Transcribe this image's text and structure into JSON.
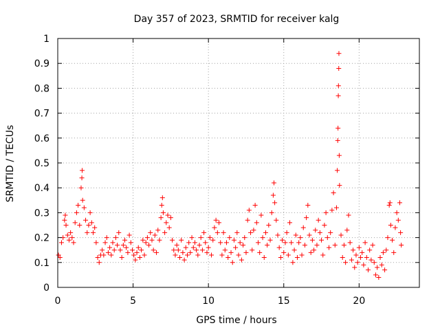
{
  "chart_data": {
    "type": "scatter",
    "title": "Day 357 of 2023, SRMTID for receiver kalg",
    "xlabel": "GPS time / hours",
    "ylabel": "SRMTID / TECUs",
    "xlim": [
      0,
      24
    ],
    "ylim": [
      0,
      1
    ],
    "xticks": [
      0,
      5,
      10,
      15,
      20
    ],
    "yticks": [
      0,
      0.1,
      0.2,
      0.3,
      0.4,
      0.5,
      0.6,
      0.7,
      0.8,
      0.9,
      1
    ],
    "xtick_labels": [
      "0",
      "5",
      "10",
      "15",
      "20"
    ],
    "ytick_labels": [
      "0",
      "0.1",
      "0.2",
      "0.3",
      "0.4",
      "0.5",
      "0.6",
      "0.7",
      "0.8",
      "0.9",
      "1"
    ],
    "grid": true,
    "marker": "+",
    "color": "#ff0000",
    "series": [
      {
        "name": "SRMTID",
        "points": [
          [
            0.05,
            0.13
          ],
          [
            0.15,
            0.12
          ],
          [
            0.25,
            0.18
          ],
          [
            0.35,
            0.2
          ],
          [
            0.45,
            0.27
          ],
          [
            0.5,
            0.29
          ],
          [
            0.55,
            0.25
          ],
          [
            0.65,
            0.21
          ],
          [
            0.75,
            0.19
          ],
          [
            0.85,
            0.22
          ],
          [
            0.95,
            0.2
          ],
          [
            1.05,
            0.18
          ],
          [
            1.15,
            0.26
          ],
          [
            1.25,
            0.3
          ],
          [
            1.35,
            0.33
          ],
          [
            1.45,
            0.25
          ],
          [
            1.55,
            0.4
          ],
          [
            1.6,
            0.44
          ],
          [
            1.62,
            0.47
          ],
          [
            1.65,
            0.35
          ],
          [
            1.75,
            0.32
          ],
          [
            1.85,
            0.27
          ],
          [
            1.95,
            0.22
          ],
          [
            2.05,
            0.25
          ],
          [
            2.15,
            0.3
          ],
          [
            2.25,
            0.26
          ],
          [
            2.35,
            0.22
          ],
          [
            2.45,
            0.24
          ],
          [
            2.55,
            0.18
          ],
          [
            2.65,
            0.12
          ],
          [
            2.75,
            0.1
          ],
          [
            2.85,
            0.13
          ],
          [
            2.95,
            0.15
          ],
          [
            3.05,
            0.13
          ],
          [
            3.15,
            0.18
          ],
          [
            3.25,
            0.2
          ],
          [
            3.35,
            0.14
          ],
          [
            3.45,
            0.16
          ],
          [
            3.55,
            0.13
          ],
          [
            3.65,
            0.18
          ],
          [
            3.75,
            0.15
          ],
          [
            3.85,
            0.2
          ],
          [
            3.95,
            0.17
          ],
          [
            4.05,
            0.22
          ],
          [
            4.15,
            0.15
          ],
          [
            4.25,
            0.12
          ],
          [
            4.35,
            0.17
          ],
          [
            4.45,
            0.19
          ],
          [
            4.55,
            0.16
          ],
          [
            4.65,
            0.14
          ],
          [
            4.75,
            0.21
          ],
          [
            4.85,
            0.18
          ],
          [
            4.95,
            0.15
          ],
          [
            5.05,
            0.13
          ],
          [
            5.15,
            0.11
          ],
          [
            5.25,
            0.14
          ],
          [
            5.35,
            0.16
          ],
          [
            5.45,
            0.12
          ],
          [
            5.55,
            0.15
          ],
          [
            5.65,
            0.19
          ],
          [
            5.75,
            0.13
          ],
          [
            5.85,
            0.18
          ],
          [
            5.95,
            0.2
          ],
          [
            6.05,
            0.17
          ],
          [
            6.15,
            0.22
          ],
          [
            6.25,
            0.19
          ],
          [
            6.35,
            0.15
          ],
          [
            6.45,
            0.21
          ],
          [
            6.55,
            0.14
          ],
          [
            6.65,
            0.23
          ],
          [
            6.75,
            0.19
          ],
          [
            6.85,
            0.28
          ],
          [
            6.9,
            0.33
          ],
          [
            6.95,
            0.36
          ],
          [
            7.0,
            0.3
          ],
          [
            7.1,
            0.22
          ],
          [
            7.2,
            0.26
          ],
          [
            7.3,
            0.29
          ],
          [
            7.4,
            0.24
          ],
          [
            7.5,
            0.28
          ],
          [
            7.6,
            0.19
          ],
          [
            7.7,
            0.15
          ],
          [
            7.8,
            0.13
          ],
          [
            7.9,
            0.17
          ],
          [
            8.0,
            0.15
          ],
          [
            8.1,
            0.12
          ],
          [
            8.2,
            0.19
          ],
          [
            8.3,
            0.14
          ],
          [
            8.4,
            0.11
          ],
          [
            8.5,
            0.16
          ],
          [
            8.6,
            0.13
          ],
          [
            8.7,
            0.18
          ],
          [
            8.8,
            0.14
          ],
          [
            8.9,
            0.2
          ],
          [
            9.0,
            0.16
          ],
          [
            9.1,
            0.18
          ],
          [
            9.2,
            0.15
          ],
          [
            9.3,
            0.13
          ],
          [
            9.4,
            0.17
          ],
          [
            9.5,
            0.2
          ],
          [
            9.6,
            0.15
          ],
          [
            9.7,
            0.22
          ],
          [
            9.8,
            0.18
          ],
          [
            9.9,
            0.14
          ],
          [
            10.0,
            0.16
          ],
          [
            10.1,
            0.2
          ],
          [
            10.2,
            0.13
          ],
          [
            10.3,
            0.19
          ],
          [
            10.4,
            0.24
          ],
          [
            10.5,
            0.27
          ],
          [
            10.6,
            0.22
          ],
          [
            10.7,
            0.26
          ],
          [
            10.8,
            0.18
          ],
          [
            10.9,
            0.13
          ],
          [
            11.0,
            0.22
          ],
          [
            11.1,
            0.15
          ],
          [
            11.2,
            0.18
          ],
          [
            11.3,
            0.12
          ],
          [
            11.4,
            0.2
          ],
          [
            11.5,
            0.14
          ],
          [
            11.6,
            0.1
          ],
          [
            11.7,
            0.19
          ],
          [
            11.8,
            0.16
          ],
          [
            11.9,
            0.22
          ],
          [
            12.0,
            0.13
          ],
          [
            12.1,
            0.18
          ],
          [
            12.2,
            0.11
          ],
          [
            12.3,
            0.17
          ],
          [
            12.4,
            0.2
          ],
          [
            12.5,
            0.14
          ],
          [
            12.6,
            0.27
          ],
          [
            12.7,
            0.31
          ],
          [
            12.8,
            0.22
          ],
          [
            12.9,
            0.15
          ],
          [
            13.0,
            0.23
          ],
          [
            13.1,
            0.33
          ],
          [
            13.2,
            0.26
          ],
          [
            13.3,
            0.18
          ],
          [
            13.4,
            0.14
          ],
          [
            13.5,
            0.29
          ],
          [
            13.6,
            0.2
          ],
          [
            13.7,
            0.12
          ],
          [
            13.8,
            0.22
          ],
          [
            13.9,
            0.17
          ],
          [
            14.0,
            0.25
          ],
          [
            14.1,
            0.19
          ],
          [
            14.2,
            0.3
          ],
          [
            14.3,
            0.37
          ],
          [
            14.35,
            0.42
          ],
          [
            14.4,
            0.34
          ],
          [
            14.5,
            0.27
          ],
          [
            14.6,
            0.21
          ],
          [
            14.7,
            0.16
          ],
          [
            14.8,
            0.12
          ],
          [
            14.9,
            0.19
          ],
          [
            15.0,
            0.14
          ],
          [
            15.1,
            0.18
          ],
          [
            15.2,
            0.22
          ],
          [
            15.3,
            0.13
          ],
          [
            15.4,
            0.26
          ],
          [
            15.5,
            0.18
          ],
          [
            15.6,
            0.1
          ],
          [
            15.7,
            0.15
          ],
          [
            15.8,
            0.21
          ],
          [
            15.9,
            0.12
          ],
          [
            16.0,
            0.18
          ],
          [
            16.1,
            0.2
          ],
          [
            16.2,
            0.13
          ],
          [
            16.3,
            0.24
          ],
          [
            16.4,
            0.17
          ],
          [
            16.5,
            0.28
          ],
          [
            16.6,
            0.33
          ],
          [
            16.7,
            0.21
          ],
          [
            16.8,
            0.14
          ],
          [
            16.9,
            0.19
          ],
          [
            17.0,
            0.15
          ],
          [
            17.1,
            0.23
          ],
          [
            17.2,
            0.17
          ],
          [
            17.3,
            0.27
          ],
          [
            17.4,
            0.22
          ],
          [
            17.5,
            0.19
          ],
          [
            17.6,
            0.13
          ],
          [
            17.7,
            0.25
          ],
          [
            17.8,
            0.3
          ],
          [
            17.9,
            0.2
          ],
          [
            18.0,
            0.16
          ],
          [
            18.1,
            0.22
          ],
          [
            18.2,
            0.31
          ],
          [
            18.3,
            0.38
          ],
          [
            18.4,
            0.17
          ],
          [
            18.5,
            0.32
          ],
          [
            18.55,
            0.47
          ],
          [
            18.58,
            0.59
          ],
          [
            18.6,
            0.64
          ],
          [
            18.62,
            0.77
          ],
          [
            18.63,
            0.81
          ],
          [
            18.65,
            0.88
          ],
          [
            18.66,
            0.94
          ],
          [
            18.68,
            0.53
          ],
          [
            18.7,
            0.41
          ],
          [
            18.8,
            0.21
          ],
          [
            18.9,
            0.12
          ],
          [
            19.0,
            0.17
          ],
          [
            19.1,
            0.1
          ],
          [
            19.2,
            0.23
          ],
          [
            19.3,
            0.29
          ],
          [
            19.4,
            0.18
          ],
          [
            19.5,
            0.11
          ],
          [
            19.6,
            0.15
          ],
          [
            19.7,
            0.08
          ],
          [
            19.8,
            0.13
          ],
          [
            19.9,
            0.1
          ],
          [
            20.0,
            0.16
          ],
          [
            20.1,
            0.12
          ],
          [
            20.2,
            0.14
          ],
          [
            20.3,
            0.09
          ],
          [
            20.4,
            0.18
          ],
          [
            20.5,
            0.12
          ],
          [
            20.6,
            0.07
          ],
          [
            20.7,
            0.15
          ],
          [
            20.8,
            0.11
          ],
          [
            20.9,
            0.17
          ],
          [
            21.0,
            0.1
          ],
          [
            21.1,
            0.05
          ],
          [
            21.2,
            0.08
          ],
          [
            21.3,
            0.04
          ],
          [
            21.4,
            0.12
          ],
          [
            21.5,
            0.09
          ],
          [
            21.6,
            0.14
          ],
          [
            21.7,
            0.07
          ],
          [
            21.8,
            0.15
          ],
          [
            21.9,
            0.2
          ],
          [
            22.0,
            0.33
          ],
          [
            22.05,
            0.34
          ],
          [
            22.1,
            0.25
          ],
          [
            22.2,
            0.19
          ],
          [
            22.3,
            0.14
          ],
          [
            22.4,
            0.24
          ],
          [
            22.5,
            0.3
          ],
          [
            22.6,
            0.27
          ],
          [
            22.7,
            0.34
          ],
          [
            22.75,
            0.22
          ],
          [
            22.8,
            0.17
          ]
        ]
      }
    ]
  }
}
